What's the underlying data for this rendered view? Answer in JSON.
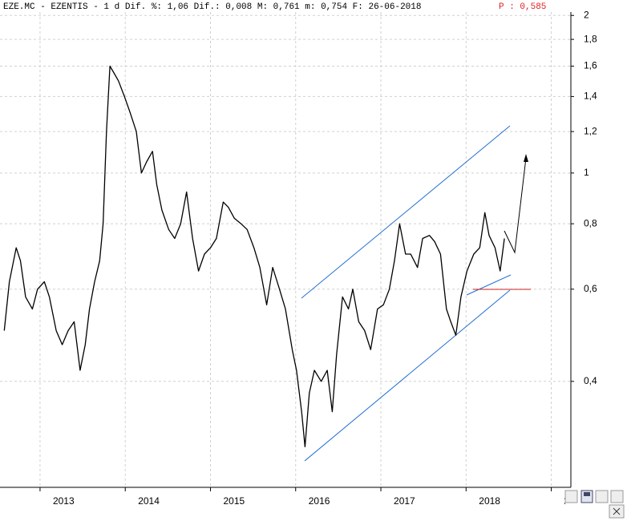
{
  "chart_data": {
    "type": "line",
    "title": "EZE.MC - EZENTIS -  1 d Dif. %: 1,06 Dif.: 0,008 M: 0,761 m: 0,754 F: 26-06-2018",
    "last_price_label": "P : 0,585",
    "log_scale": true,
    "grid": true,
    "color": "#000000",
    "xlim": [
      2012.53,
      2019.23
    ],
    "xticks": [
      2013,
      2014,
      2015,
      2016,
      2017,
      2018,
      2019
    ],
    "ylim": [
      0.251,
      2.03
    ],
    "yticks": [
      {
        "value": 0.4,
        "label": "0,4"
      },
      {
        "value": 0.6,
        "label": "0,6"
      },
      {
        "value": 0.8,
        "label": "0,8"
      },
      1,
      {
        "value": 1.2,
        "label": "1,2"
      },
      {
        "value": 1.4,
        "label": "1,4"
      },
      {
        "value": 1.6,
        "label": "1,6"
      },
      {
        "value": 1.8,
        "label": "1,8"
      },
      2
    ],
    "x": [
      2012.58,
      2012.64,
      2012.72,
      2012.77,
      2012.83,
      2012.91,
      2012.97,
      2013.05,
      2013.11,
      2013.19,
      2013.26,
      2013.33,
      2013.4,
      2013.47,
      2013.53,
      2013.58,
      2013.64,
      2013.7,
      2013.74,
      2013.78,
      2013.82,
      2013.87,
      2013.92,
      2013.99,
      2014.06,
      2014.13,
      2014.19,
      2014.25,
      2014.32,
      2014.37,
      2014.43,
      2014.51,
      2014.58,
      2014.65,
      2014.72,
      2014.79,
      2014.86,
      2014.93,
      2015.0,
      2015.07,
      2015.15,
      2015.21,
      2015.28,
      2015.36,
      2015.43,
      2015.51,
      2015.58,
      2015.66,
      2015.73,
      2015.81,
      2015.88,
      2015.96,
      2016.01,
      2016.07,
      2016.11,
      2016.16,
      2016.22,
      2016.3,
      2016.37,
      2016.43,
      2016.48,
      2016.55,
      2016.62,
      2016.67,
      2016.74,
      2016.81,
      2016.88,
      2016.96,
      2017.03,
      2017.1,
      2017.16,
      2017.22,
      2017.29,
      2017.35,
      2017.43,
      2017.49,
      2017.57,
      2017.63,
      2017.7,
      2017.77,
      2017.82,
      2017.88,
      2017.94,
      2018.01,
      2018.09,
      2018.16,
      2018.22,
      2018.27,
      2018.34,
      2018.4,
      2018.45
    ],
    "values": [
      0.5,
      0.62,
      0.72,
      0.68,
      0.58,
      0.55,
      0.6,
      0.62,
      0.58,
      0.5,
      0.47,
      0.5,
      0.52,
      0.42,
      0.47,
      0.55,
      0.62,
      0.68,
      0.8,
      1.2,
      1.6,
      1.55,
      1.5,
      1.4,
      1.3,
      1.2,
      1.0,
      1.05,
      1.1,
      0.95,
      0.85,
      0.78,
      0.75,
      0.8,
      0.92,
      0.75,
      0.65,
      0.7,
      0.72,
      0.75,
      0.88,
      0.86,
      0.82,
      0.8,
      0.78,
      0.72,
      0.66,
      0.56,
      0.66,
      0.6,
      0.55,
      0.46,
      0.42,
      0.35,
      0.3,
      0.38,
      0.42,
      0.4,
      0.42,
      0.35,
      0.45,
      0.58,
      0.55,
      0.6,
      0.52,
      0.5,
      0.46,
      0.55,
      0.56,
      0.6,
      0.68,
      0.8,
      0.7,
      0.7,
      0.66,
      0.75,
      0.76,
      0.74,
      0.7,
      0.55,
      0.52,
      0.49,
      0.58,
      0.65,
      0.7,
      0.72,
      0.84,
      0.76,
      0.72,
      0.65,
      0.75
    ]
  }
}
